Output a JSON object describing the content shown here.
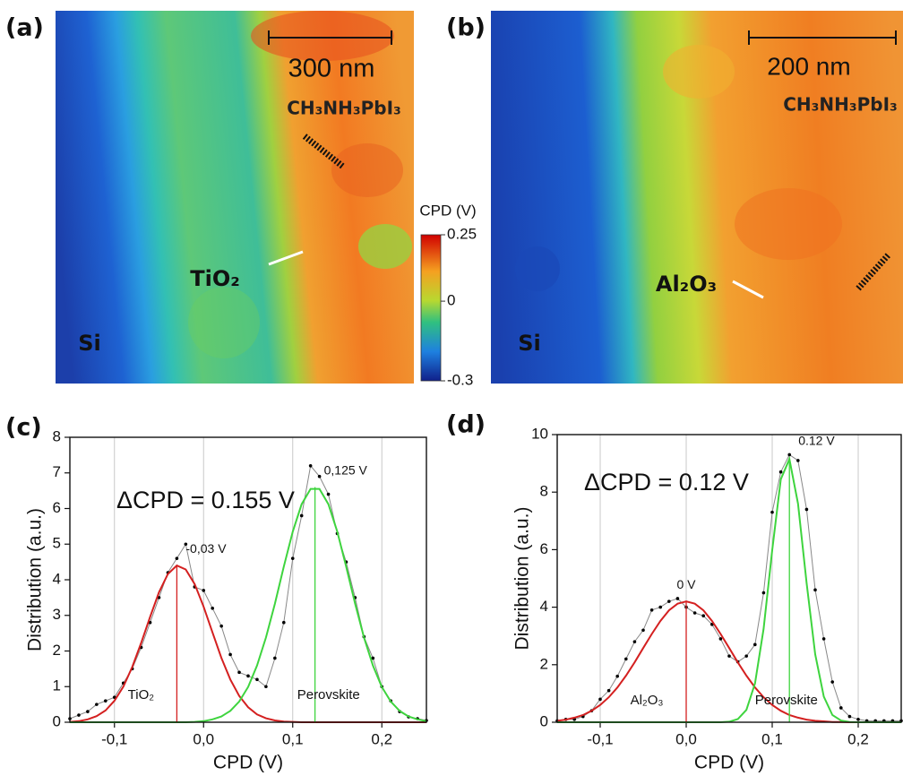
{
  "maps": [
    {
      "panel": "(a)",
      "scale": "300 nm",
      "top_label": "CH₃NH₃PbI₃",
      "layer": "TiO₂",
      "substrate": "Si"
    },
    {
      "panel": "(b)",
      "scale": "200 nm",
      "top_label": "CH₃NH₃PbI₃",
      "layer": "Al₂O₃",
      "substrate": "Si"
    }
  ],
  "colorbar": {
    "label": "CPD (V)",
    "lim": [
      -0.3,
      0.25
    ],
    "ticks": [
      0.25,
      0,
      -0.3
    ]
  },
  "chart_data": [
    {
      "type": "line",
      "panel": "(c)",
      "xlabel": "CPD (V)",
      "ylabel": "Distribution (a.u.)",
      "annotation": "ΔCPD = 0.155 V",
      "xlim": [
        -0.15,
        0.25
      ],
      "ylim": [
        0,
        8
      ],
      "grid": "x",
      "xticks": [
        {
          "value": -0.1,
          "label": "-0,1"
        },
        {
          "value": 0,
          "label": "0,0"
        },
        {
          "value": 0.1,
          "label": "0,1"
        },
        {
          "value": 0.2,
          "label": "0,2"
        }
      ],
      "yticks": [
        0,
        1,
        2,
        3,
        4,
        5,
        6,
        7,
        8
      ],
      "x": [
        -0.15,
        -0.14,
        -0.13,
        -0.12,
        -0.11,
        -0.1,
        -0.09,
        -0.08,
        -0.07,
        -0.06,
        -0.05,
        -0.04,
        -0.03,
        -0.02,
        -0.01,
        0,
        0.01,
        0.02,
        0.03,
        0.04,
        0.05,
        0.06,
        0.07,
        0.08,
        0.09,
        0.1,
        0.11,
        0.12,
        0.13,
        0.14,
        0.15,
        0.16,
        0.17,
        0.18,
        0.19,
        0.2,
        0.21,
        0.22,
        0.23,
        0.24,
        0.25
      ],
      "series": [
        {
          "color": "#000000",
          "line_color": "#888888",
          "markers": true,
          "values": [
            0.1,
            0.2,
            0.3,
            0.5,
            0.6,
            0.7,
            1.1,
            1.5,
            2.1,
            2.8,
            3.5,
            4.2,
            4.6,
            5.0,
            3.8,
            3.7,
            3.2,
            2.7,
            1.9,
            1.4,
            1.3,
            1.2,
            1.0,
            1.8,
            2.8,
            4.6,
            5.8,
            7.2,
            6.9,
            6.4,
            5.3,
            4.5,
            3.5,
            2.4,
            1.8,
            1.0,
            0.6,
            0.3,
            0.15,
            0.1,
            0.05
          ]
        },
        {
          "color": "#d42020",
          "markers": false,
          "values": [
            0.01,
            0.03,
            0.08,
            0.17,
            0.33,
            0.6,
            1.0,
            1.55,
            2.23,
            2.96,
            3.65,
            4.16,
            4.4,
            4.29,
            3.88,
            3.25,
            2.52,
            1.81,
            1.2,
            0.74,
            0.42,
            0.22,
            0.11,
            0.05,
            0.02,
            0.01,
            0,
            0,
            0,
            0,
            0,
            0,
            0,
            0,
            0,
            0,
            0,
            0,
            0,
            0,
            0
          ]
        },
        {
          "color": "#3ed43e",
          "markers": false,
          "values": [
            0,
            0,
            0,
            0,
            0,
            0,
            0,
            0,
            0,
            0,
            0,
            0,
            0,
            0,
            0.01,
            0.03,
            0.08,
            0.16,
            0.32,
            0.58,
            0.99,
            1.59,
            2.38,
            3.33,
            4.37,
            5.35,
            6.12,
            6.55,
            6.55,
            6.12,
            5.35,
            4.37,
            3.33,
            2.38,
            1.59,
            0.99,
            0.58,
            0.32,
            0.16,
            0.08,
            0.03
          ]
        }
      ],
      "peaks": [
        {
          "x": -0.03,
          "height": 4.4,
          "color": "#d42020",
          "label": "-0,03 V"
        },
        {
          "x": 0.125,
          "height": 6.6,
          "color": "#3ed43e",
          "label": "0,125 V"
        }
      ],
      "annotations": [
        "TiO₂",
        "Perovskite"
      ]
    },
    {
      "type": "line",
      "panel": "(d)",
      "xlabel": "CPD (V)",
      "ylabel": "Distribution (a.u.)",
      "annotation": "ΔCPD = 0.12 V",
      "xlim": [
        -0.15,
        0.25
      ],
      "ylim": [
        0,
        10
      ],
      "grid": "x",
      "xticks": [
        {
          "value": -0.1,
          "label": "-0,1"
        },
        {
          "value": 0,
          "label": "0,0"
        },
        {
          "value": 0.1,
          "label": "0,1"
        },
        {
          "value": 0.2,
          "label": "0,2"
        }
      ],
      "yticks": [
        0,
        2,
        4,
        6,
        8,
        10
      ],
      "x": [
        -0.15,
        -0.14,
        -0.13,
        -0.12,
        -0.11,
        -0.1,
        -0.09,
        -0.08,
        -0.07,
        -0.06,
        -0.05,
        -0.04,
        -0.03,
        -0.02,
        -0.01,
        0,
        0.01,
        0.02,
        0.03,
        0.04,
        0.05,
        0.06,
        0.07,
        0.08,
        0.09,
        0.1,
        0.11,
        0.12,
        0.13,
        0.14,
        0.15,
        0.16,
        0.17,
        0.18,
        0.19,
        0.2,
        0.21,
        0.22,
        0.23,
        0.24,
        0.25
      ],
      "series": [
        {
          "color": "#000000",
          "line_color": "#888888",
          "markers": true,
          "values": [
            0.05,
            0.1,
            0.1,
            0.2,
            0.4,
            0.8,
            1.1,
            1.6,
            2.2,
            2.8,
            3.2,
            3.9,
            4.0,
            4.2,
            4.3,
            4.0,
            3.8,
            3.7,
            3.4,
            2.9,
            2.3,
            2.1,
            2.3,
            2.7,
            4.5,
            7.3,
            8.7,
            9.3,
            9.1,
            7.4,
            4.6,
            2.9,
            1.4,
            0.5,
            0.2,
            0.1,
            0.05,
            0.05,
            0.05,
            0.05,
            0.05
          ]
        },
        {
          "color": "#d42020",
          "markers": false,
          "values": [
            0.05,
            0.09,
            0.16,
            0.25,
            0.4,
            0.6,
            0.87,
            1.21,
            1.62,
            2.08,
            2.58,
            3.07,
            3.52,
            3.89,
            4.12,
            4.2,
            4.12,
            3.89,
            3.52,
            3.07,
            2.58,
            2.08,
            1.62,
            1.21,
            0.87,
            0.6,
            0.4,
            0.25,
            0.16,
            0.09,
            0.05,
            0.03,
            0.01,
            0.01,
            0,
            0,
            0,
            0,
            0,
            0,
            0
          ]
        },
        {
          "color": "#3ed43e",
          "markers": false,
          "values": [
            0,
            0,
            0,
            0,
            0,
            0,
            0,
            0,
            0,
            0,
            0,
            0,
            0,
            0,
            0,
            0,
            0,
            0,
            0,
            0,
            0.02,
            0.11,
            0.43,
            1.35,
            3.25,
            5.98,
            8.45,
            9.15,
            7.6,
            4.84,
            2.36,
            0.89,
            0.25,
            0.06,
            0.01,
            0,
            0,
            0,
            0,
            0,
            0
          ]
        }
      ],
      "peaks": [
        {
          "x": 0,
          "height": 4.2,
          "color": "#d42020",
          "label": "0 V"
        },
        {
          "x": 0.12,
          "height": 9.2,
          "color": "#3ed43e",
          "label": "0.12 V"
        }
      ],
      "annotations": [
        "Al₂O₃",
        "Perovskite"
      ]
    }
  ]
}
